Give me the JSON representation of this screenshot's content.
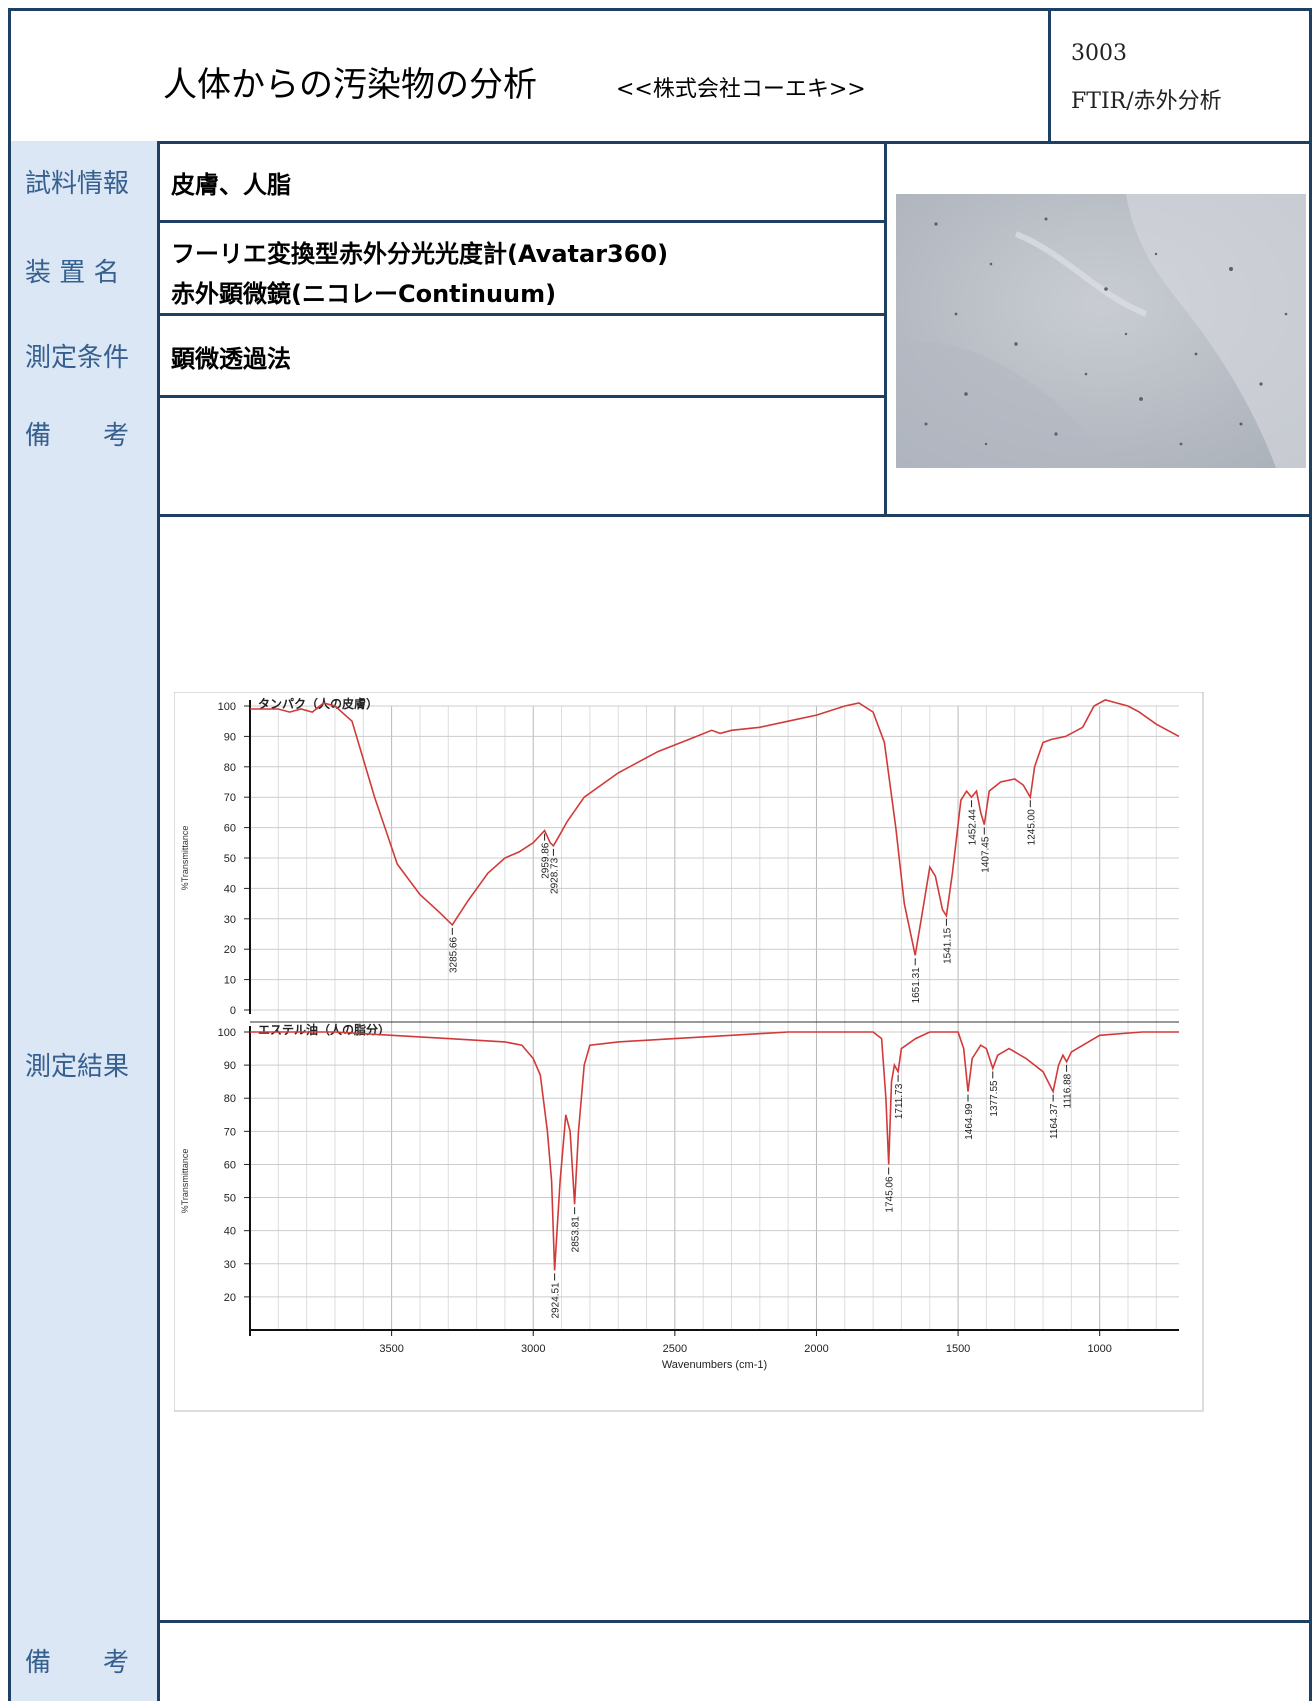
{
  "header": {
    "title": "人体からの汚染物の分析",
    "company": "<<株式会社コーエキ>>",
    "code": "3003",
    "category": "FTIR/赤外分析"
  },
  "rows": {
    "sample_label": "試料情報",
    "sample_value": "皮膚、人脂",
    "device_label": "装 置 名",
    "device_line1": "フーリエ変換型赤外分光光度計(Avatar360)",
    "device_line2": "赤外顕微鏡(ニコレーContinuum)",
    "condition_label": "測定条件",
    "condition_value": "顕微透過法",
    "remarks_label": "備　　考",
    "remarks_value": "",
    "result_label": "測定結果",
    "footer_label": "備　　考"
  },
  "chart_data": {
    "type": "line",
    "xlabel": "Wavenumbers (cm-1)",
    "ylabel": "%Transmittance",
    "xlim": [
      4000,
      720
    ],
    "x_ticks": [
      3500,
      3000,
      2500,
      2000,
      1500,
      1000
    ],
    "panels": [
      {
        "name": "タンパク（人の皮膚）",
        "ylim": [
          0,
          100
        ],
        "y_ticks": [
          0,
          10,
          20,
          30,
          40,
          50,
          60,
          70,
          80,
          90,
          100
        ],
        "color": "#d23a3a",
        "points": [
          [
            4000,
            99
          ],
          [
            3900,
            99
          ],
          [
            3860,
            98
          ],
          [
            3820,
            99
          ],
          [
            3780,
            98
          ],
          [
            3740,
            101
          ],
          [
            3700,
            100
          ],
          [
            3640,
            95
          ],
          [
            3560,
            70
          ],
          [
            3480,
            48
          ],
          [
            3400,
            38
          ],
          [
            3330,
            32
          ],
          [
            3285.66,
            28
          ],
          [
            3230,
            36
          ],
          [
            3160,
            45
          ],
          [
            3100,
            50
          ],
          [
            3050,
            52
          ],
          [
            3000,
            55
          ],
          [
            2959.86,
            59
          ],
          [
            2940,
            55
          ],
          [
            2928.73,
            54
          ],
          [
            2910,
            57
          ],
          [
            2880,
            62
          ],
          [
            2820,
            70
          ],
          [
            2700,
            78
          ],
          [
            2560,
            85
          ],
          [
            2450,
            89
          ],
          [
            2370,
            92
          ],
          [
            2340,
            91
          ],
          [
            2300,
            92
          ],
          [
            2200,
            93
          ],
          [
            2100,
            95
          ],
          [
            2000,
            97
          ],
          [
            1900,
            100
          ],
          [
            1850,
            101
          ],
          [
            1800,
            98
          ],
          [
            1760,
            88
          ],
          [
            1720,
            60
          ],
          [
            1690,
            35
          ],
          [
            1651.31,
            18
          ],
          [
            1630,
            30
          ],
          [
            1600,
            47
          ],
          [
            1580,
            44
          ],
          [
            1555,
            33
          ],
          [
            1541.15,
            31
          ],
          [
            1520,
            45
          ],
          [
            1490,
            69
          ],
          [
            1470,
            72
          ],
          [
            1452.44,
            70
          ],
          [
            1435,
            72
          ],
          [
            1420,
            65
          ],
          [
            1407.45,
            61
          ],
          [
            1390,
            72
          ],
          [
            1350,
            75
          ],
          [
            1300,
            76
          ],
          [
            1270,
            74
          ],
          [
            1245,
            70
          ],
          [
            1230,
            80
          ],
          [
            1200,
            88
          ],
          [
            1170,
            89
          ],
          [
            1120,
            90
          ],
          [
            1060,
            93
          ],
          [
            1020,
            100
          ],
          [
            980,
            102
          ],
          [
            940,
            101
          ],
          [
            900,
            100
          ],
          [
            860,
            98
          ],
          [
            800,
            94
          ],
          [
            720,
            90
          ]
        ],
        "peak_labels": [
          {
            "x": 3285.66,
            "y": 28,
            "text": "3285.66"
          },
          {
            "x": 2959.86,
            "y": 59,
            "text": "2959.86"
          },
          {
            "x": 2928.73,
            "y": 54,
            "text": "2928.73"
          },
          {
            "x": 1651.31,
            "y": 18,
            "text": "1651.31"
          },
          {
            "x": 1541.15,
            "y": 31,
            "text": "1541.15"
          },
          {
            "x": 1452.44,
            "y": 70,
            "text": "1452.44"
          },
          {
            "x": 1407.45,
            "y": 61,
            "text": "1407.45"
          },
          {
            "x": 1245.0,
            "y": 70,
            "text": "1245.00"
          }
        ]
      },
      {
        "name": "エステル油（人の脂分）",
        "ylim": [
          10,
          100
        ],
        "y_ticks": [
          20,
          30,
          40,
          50,
          60,
          70,
          80,
          90,
          100
        ],
        "color": "#d23a3a",
        "points": [
          [
            4000,
            100
          ],
          [
            3700,
            100
          ],
          [
            3500,
            99
          ],
          [
            3300,
            98
          ],
          [
            3100,
            97
          ],
          [
            3040,
            96
          ],
          [
            3000,
            92
          ],
          [
            2975,
            87
          ],
          [
            2950,
            70
          ],
          [
            2935,
            55
          ],
          [
            2924.51,
            28
          ],
          [
            2905,
            55
          ],
          [
            2885,
            75
          ],
          [
            2870,
            70
          ],
          [
            2853.81,
            48
          ],
          [
            2840,
            70
          ],
          [
            2820,
            90
          ],
          [
            2800,
            96
          ],
          [
            2700,
            97
          ],
          [
            2500,
            98
          ],
          [
            2300,
            99
          ],
          [
            2100,
            100
          ],
          [
            1900,
            100
          ],
          [
            1800,
            100
          ],
          [
            1770,
            98
          ],
          [
            1755,
            80
          ],
          [
            1745.06,
            60
          ],
          [
            1735,
            85
          ],
          [
            1725,
            90
          ],
          [
            1711.73,
            88
          ],
          [
            1700,
            95
          ],
          [
            1650,
            98
          ],
          [
            1600,
            100
          ],
          [
            1500,
            100
          ],
          [
            1480,
            95
          ],
          [
            1464.99,
            82
          ],
          [
            1450,
            92
          ],
          [
            1420,
            96
          ],
          [
            1400,
            95
          ],
          [
            1377.55,
            89
          ],
          [
            1360,
            93
          ],
          [
            1320,
            95
          ],
          [
            1260,
            92
          ],
          [
            1200,
            88
          ],
          [
            1164.37,
            82
          ],
          [
            1145,
            90
          ],
          [
            1130,
            93
          ],
          [
            1116.88,
            91
          ],
          [
            1100,
            94
          ],
          [
            1000,
            99
          ],
          [
            850,
            100
          ],
          [
            720,
            100
          ]
        ],
        "peak_labels": [
          {
            "x": 2924.51,
            "y": 28,
            "text": "2924.51"
          },
          {
            "x": 2853.81,
            "y": 48,
            "text": "2853.81"
          },
          {
            "x": 1745.06,
            "y": 60,
            "text": "1745.06"
          },
          {
            "x": 1711.73,
            "y": 88,
            "text": "1711.73"
          },
          {
            "x": 1464.99,
            "y": 82,
            "text": "1464.99"
          },
          {
            "x": 1377.55,
            "y": 89,
            "text": "1377.55"
          },
          {
            "x": 1164.37,
            "y": 82,
            "text": "1164.37"
          },
          {
            "x": 1116.88,
            "y": 91,
            "text": "1116.88"
          }
        ]
      }
    ]
  }
}
